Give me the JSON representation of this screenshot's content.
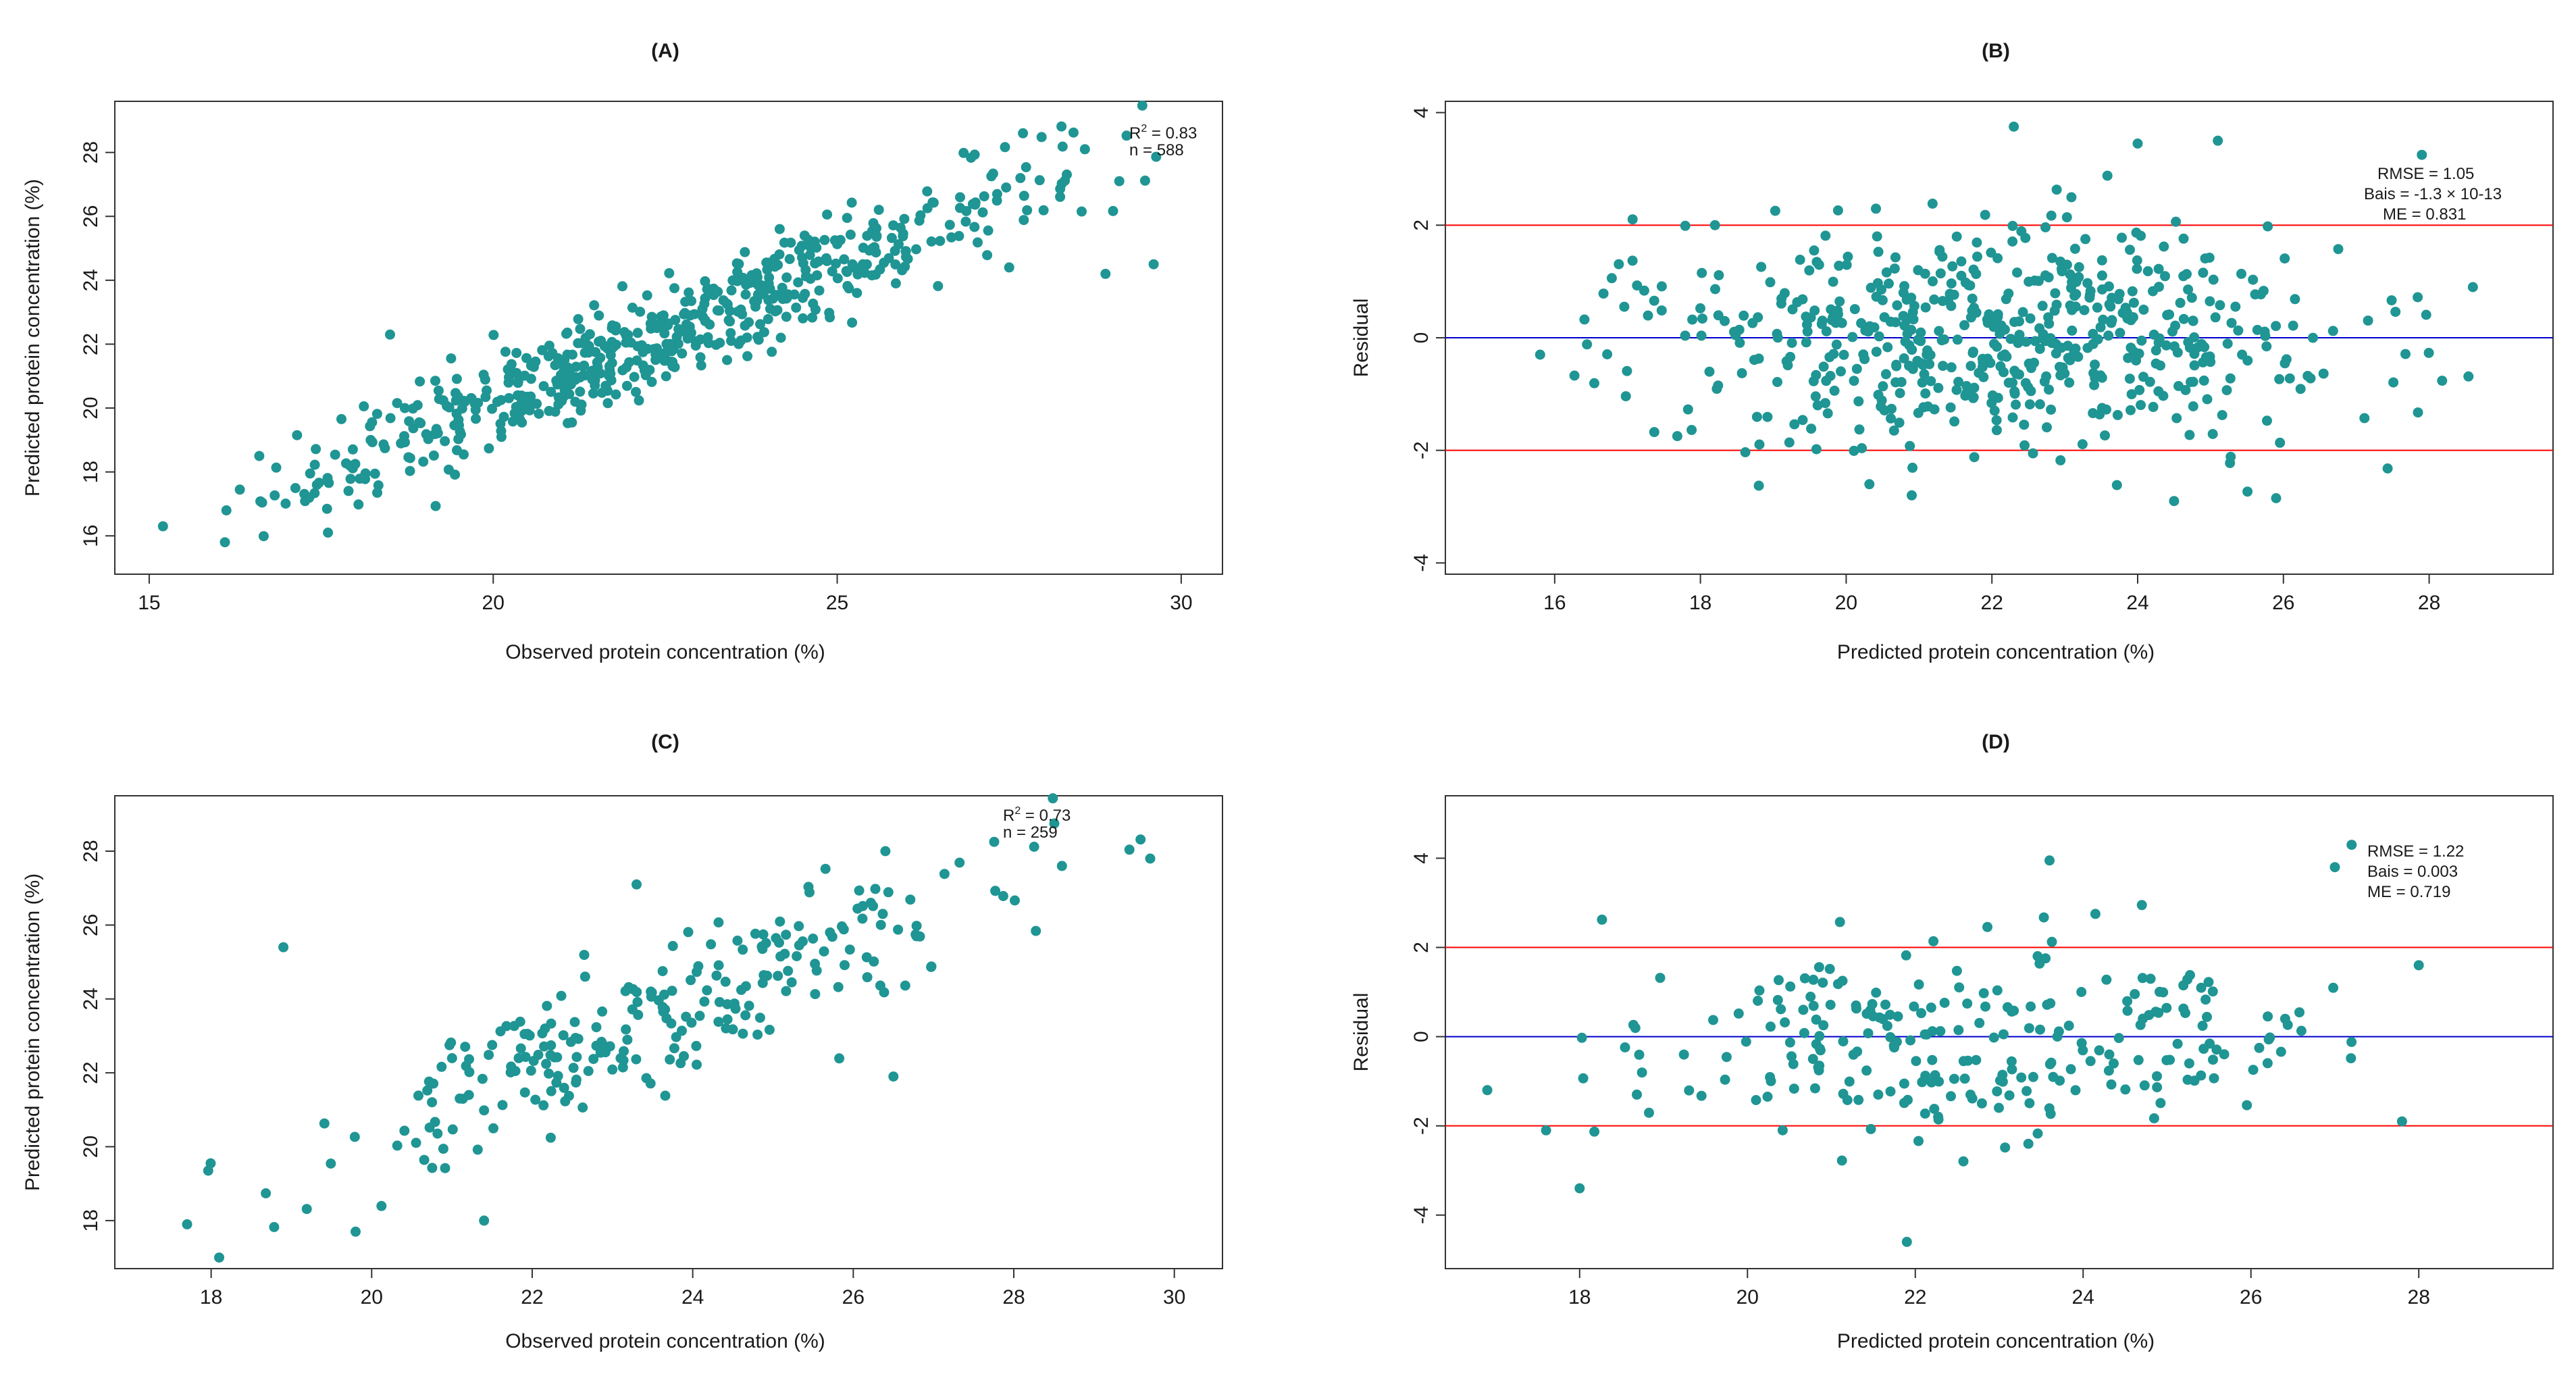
{
  "chart_data": [
    {
      "id": "A",
      "type": "scatter",
      "title": "(A)",
      "xlabel": "Observed protein concentration (%)",
      "ylabel": "Predicted protein concentration (%)",
      "xlim": [
        14.5,
        30.6
      ],
      "ylim": [
        14.8,
        29.6
      ],
      "xticks": [
        15,
        20,
        25,
        30
      ],
      "yticks": [
        16,
        18,
        20,
        22,
        24,
        26,
        28
      ],
      "annotation": {
        "r2_prefix": "R",
        "r2_sup": "2",
        "r2_value": " = 0.83",
        "n": "n = 588"
      },
      "n": 588,
      "trend": {
        "intercept": 2.5,
        "slope": 0.88,
        "spread": 0.95
      },
      "x_range": [
        15.2,
        29.7
      ],
      "extra_points": [
        [
          15.2,
          16.3
        ],
        [
          16.1,
          15.8
        ],
        [
          18.5,
          22.3
        ],
        [
          27.7,
          28.6
        ],
        [
          29.6,
          24.5
        ],
        [
          28.9,
          24.2
        ],
        [
          28.6,
          28.1
        ],
        [
          29.1,
          27.1
        ],
        [
          27.5,
          24.4
        ],
        [
          16.6,
          18.5
        ]
      ]
    },
    {
      "id": "B",
      "type": "scatter",
      "title": "(B)",
      "xlabel": "Predicted protein concentration (%)",
      "ylabel": "Residual",
      "xlim": [
        14.5,
        29.7
      ],
      "ylim": [
        -4.2,
        4.2
      ],
      "xticks": [
        16,
        18,
        20,
        22,
        24,
        26,
        28
      ],
      "yticks": [
        -4,
        -2,
        0,
        2,
        4
      ],
      "hlines": [
        {
          "y": 2,
          "color": "#ff0000"
        },
        {
          "y": 0,
          "color": "#0000cc"
        },
        {
          "y": -2,
          "color": "#ff0000"
        }
      ],
      "annotation": {
        "rmse": "RMSE = 1.05",
        "bias": "Bais = -1.3 × 10-13",
        "me": "ME = 0.831"
      },
      "n": 588,
      "x_mean": 22.2,
      "x_sd": 2.4,
      "x_range": [
        15.8,
        28.6
      ],
      "resid_sd": 1.0,
      "extra_points": [
        [
          22.3,
          3.75
        ],
        [
          24.0,
          3.45
        ],
        [
          25.1,
          3.5
        ],
        [
          27.9,
          3.25
        ],
        [
          24.5,
          -2.9
        ],
        [
          25.9,
          -2.85
        ],
        [
          20.9,
          -2.8
        ],
        [
          28.6,
          0.9
        ],
        [
          15.8,
          -0.3
        ],
        [
          18.2,
          2.0
        ]
      ]
    },
    {
      "id": "C",
      "type": "scatter",
      "title": "(C)",
      "xlabel": "Observed protein concentration (%)",
      "ylabel": "Predicted protein concentration (%)",
      "xlim": [
        16.8,
        30.6
      ],
      "ylim": [
        16.7,
        29.5
      ],
      "xticks": [
        18,
        20,
        22,
        24,
        26,
        28,
        30
      ],
      "yticks": [
        18,
        20,
        22,
        24,
        26,
        28
      ],
      "annotation": {
        "r2_prefix": "R",
        "r2_sup": "2",
        "r2_value": " = 0.73",
        "n": "n = 259"
      },
      "n": 259,
      "trend": {
        "intercept": 2.3,
        "slope": 0.9,
        "spread": 1.1
      },
      "x_range": [
        17.7,
        29.7
      ],
      "extra_points": [
        [
          18.9,
          25.4
        ],
        [
          19.8,
          17.7
        ],
        [
          21.4,
          18.0
        ],
        [
          26.5,
          21.9
        ],
        [
          28.6,
          27.6
        ],
        [
          29.7,
          27.8
        ],
        [
          26.4,
          28.0
        ],
        [
          17.7,
          17.9
        ],
        [
          18.1,
          17.0
        ],
        [
          23.3,
          27.1
        ]
      ]
    },
    {
      "id": "D",
      "type": "scatter",
      "title": "(D)",
      "xlabel": "Predicted protein concentration (%)",
      "ylabel": "Residual",
      "xlim": [
        16.4,
        29.6
      ],
      "ylim": [
        -5.2,
        5.4
      ],
      "xticks": [
        18,
        20,
        22,
        24,
        26,
        28
      ],
      "yticks": [
        -4,
        -2,
        0,
        2,
        4
      ],
      "hlines": [
        {
          "y": 2,
          "color": "#ff0000"
        },
        {
          "y": 0,
          "color": "#0000cc"
        },
        {
          "y": -2,
          "color": "#ff0000"
        }
      ],
      "annotation": {
        "rmse": "RMSE = 1.22",
        "bias": "Bais = 0.003",
        "me": "ME = 0.719"
      },
      "n": 259,
      "x_mean": 22.8,
      "x_sd": 2.2,
      "x_range": [
        16.9,
        28.0
      ],
      "resid_sd": 1.05,
      "extra_points": [
        [
          21.9,
          -4.6
        ],
        [
          18.0,
          -3.4
        ],
        [
          23.6,
          3.95
        ],
        [
          27.2,
          4.3
        ],
        [
          27.0,
          3.8
        ],
        [
          28.0,
          1.6
        ],
        [
          27.8,
          -1.9
        ],
        [
          16.9,
          -1.2
        ],
        [
          24.7,
          2.95
        ],
        [
          17.6,
          -2.1
        ]
      ]
    }
  ]
}
